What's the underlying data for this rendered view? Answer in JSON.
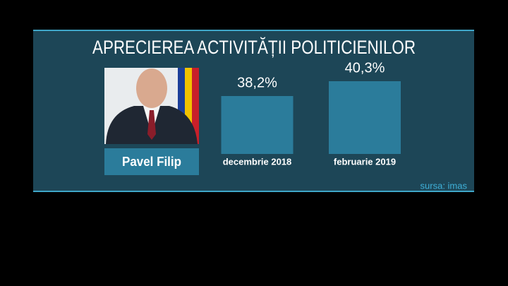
{
  "chart_data": {
    "type": "bar",
    "title": "APRECIEREA ACTIVITĂȚII POLITICIENILOR",
    "annotations": [
      "Pavel Filip",
      "sursa: imas"
    ],
    "categories": [
      "decembrie 2018",
      "februarie 2019"
    ],
    "values": [
      38.2,
      40.3
    ],
    "value_labels": [
      "38,2%",
      "40,3%"
    ],
    "color": "#2b7c9b",
    "ylim": [
      30,
      42
    ]
  }
}
